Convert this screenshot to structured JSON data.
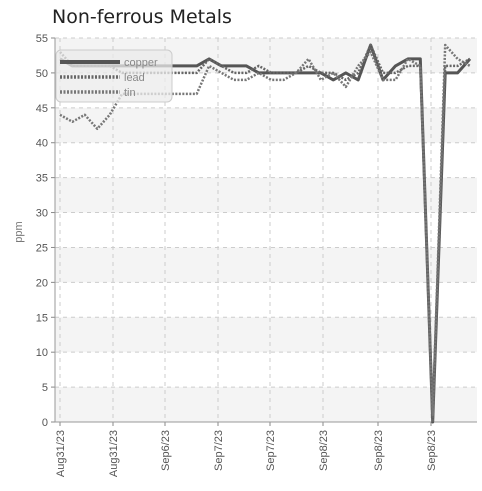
{
  "chart_data": {
    "type": "line",
    "title": "Non-ferrous Metals",
    "ylabel": "ppm",
    "xlabel": "",
    "ylim": [
      0,
      55
    ],
    "yticks": [
      0,
      5,
      10,
      15,
      20,
      25,
      30,
      35,
      40,
      45,
      50,
      55
    ],
    "grid": true,
    "legend_position": "top-left",
    "x_tick_labels": [
      "Aug31/23",
      "Aug31/23",
      "Sep6/23",
      "Sep7/23",
      "Sep7/23",
      "Sep8/23",
      "Sep8/23",
      "Sep8/23"
    ],
    "colors": {
      "copper": "#555555",
      "lead": "#666666",
      "tin": "#777777",
      "grid": "#cccccc",
      "band": "#f4f4f4"
    },
    "series": [
      {
        "name": "copper",
        "style": "solid",
        "values": [
          52,
          51,
          51,
          51,
          51,
          51,
          51,
          51,
          51,
          51,
          51,
          51,
          52,
          51,
          51,
          51,
          50,
          50,
          50,
          50,
          50,
          50,
          49,
          50,
          49,
          54,
          49,
          51,
          52,
          52,
          0,
          50,
          50,
          52
        ]
      },
      {
        "name": "lead",
        "style": "dotted",
        "values": [
          53,
          51,
          51,
          51,
          51,
          50,
          50,
          50,
          50,
          50,
          50,
          50,
          52,
          51,
          50,
          50,
          51,
          50,
          50,
          50,
          51,
          50,
          50,
          49,
          50,
          54,
          50,
          50,
          51,
          51,
          0,
          51,
          51,
          52
        ]
      },
      {
        "name": "tin",
        "style": "dotted",
        "values": [
          44,
          43,
          44,
          42,
          44,
          47,
          47,
          47,
          47,
          47,
          47,
          47,
          51,
          50,
          49,
          49,
          50,
          49,
          49,
          50,
          52,
          49,
          50,
          48,
          51,
          53,
          49,
          49,
          52,
          51,
          1,
          54,
          52,
          51
        ]
      }
    ]
  }
}
